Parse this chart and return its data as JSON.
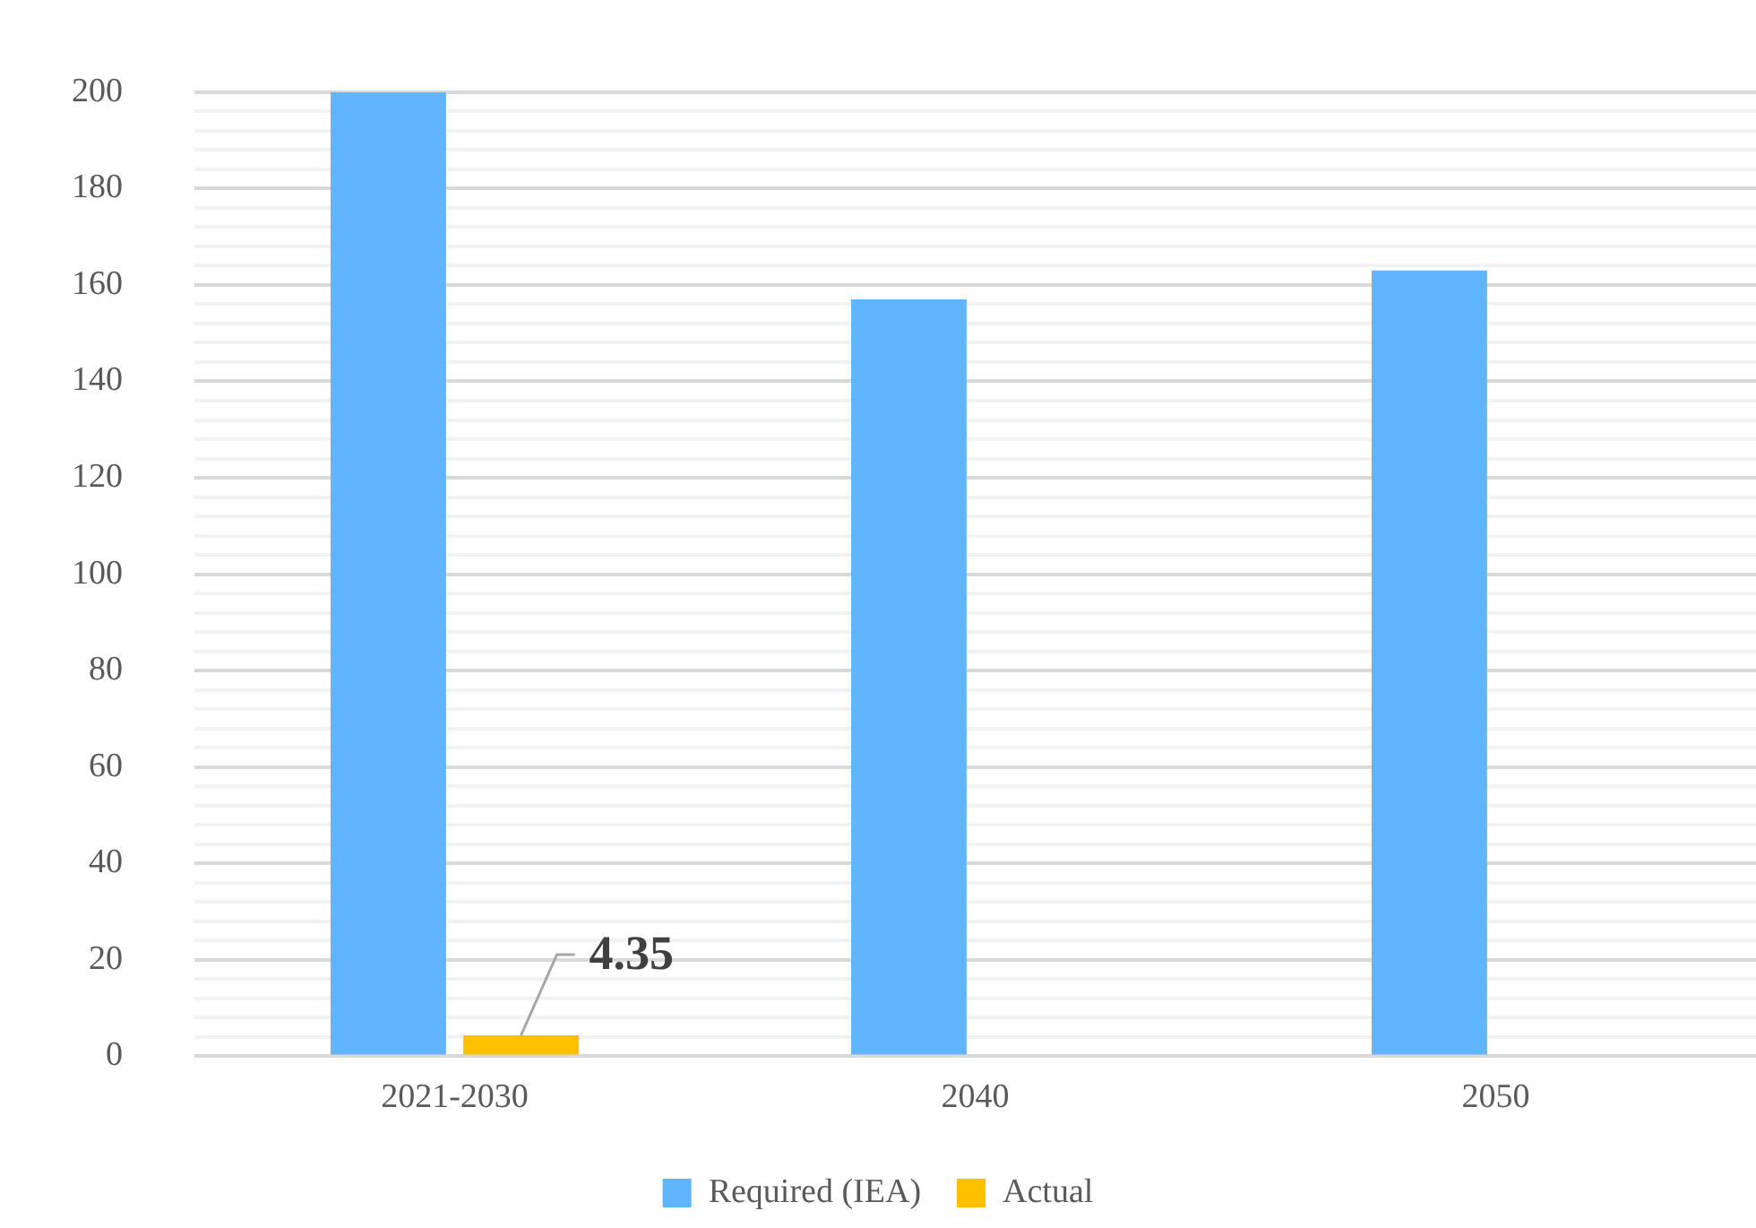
{
  "chart_data": {
    "type": "bar",
    "categories": [
      "2021-2030",
      "2040",
      "2050"
    ],
    "series": [
      {
        "name": "Required (IEA)",
        "color": "#61b4fe",
        "values": [
          200,
          157,
          163
        ]
      },
      {
        "name": "Actual",
        "color": "#ffc000",
        "values": [
          4.35,
          null,
          null
        ],
        "value_labels": [
          "4.35",
          null,
          null
        ]
      }
    ],
    "ylim": [
      0,
      200
    ],
    "yticks": [
      0,
      {
        "value": 4,
        "label": null
      },
      {
        "value": 8,
        "label": null
      },
      {
        "value": 12,
        "label": null
      },
      {
        "value": 16,
        "label": null
      },
      20,
      {
        "value": 24,
        "label": null
      },
      {
        "value": 28,
        "label": null
      },
      {
        "value": 32,
        "label": null
      },
      {
        "value": 36,
        "label": null
      },
      40,
      {
        "value": 44,
        "label": null
      },
      {
        "value": 48,
        "label": null
      },
      {
        "value": 52,
        "label": null
      },
      {
        "value": 56,
        "label": null
      },
      60,
      {
        "value": 64,
        "label": null
      },
      {
        "value": 68,
        "label": null
      },
      {
        "value": 72,
        "label": null
      },
      {
        "value": 76,
        "label": null
      },
      80,
      {
        "value": 84,
        "label": null
      },
      {
        "value": 88,
        "label": null
      },
      {
        "value": 92,
        "label": null
      },
      {
        "value": 96,
        "label": null
      },
      100,
      {
        "value": 104,
        "label": null
      },
      {
        "value": 108,
        "label": null
      },
      {
        "value": 112,
        "label": null
      },
      {
        "value": 116,
        "label": null
      },
      120,
      {
        "value": 124,
        "label": null
      },
      {
        "value": 128,
        "label": null
      },
      {
        "value": 132,
        "label": null
      },
      {
        "value": 136,
        "label": null
      },
      140,
      {
        "value": 144,
        "label": null
      },
      {
        "value": 148,
        "label": null
      },
      {
        "value": 152,
        "label": null
      },
      {
        "value": 156,
        "label": null
      },
      160,
      {
        "value": 164,
        "label": null
      },
      {
        "value": 168,
        "label": null
      },
      {
        "value": 172,
        "label": null
      },
      {
        "value": 176,
        "label": null
      },
      180,
      {
        "value": 184,
        "label": null
      },
      {
        "value": 188,
        "label": null
      },
      {
        "value": 192,
        "label": null
      },
      {
        "value": 196,
        "label": null
      },
      200
    ],
    "grid": "y",
    "legend": "bottom"
  }
}
